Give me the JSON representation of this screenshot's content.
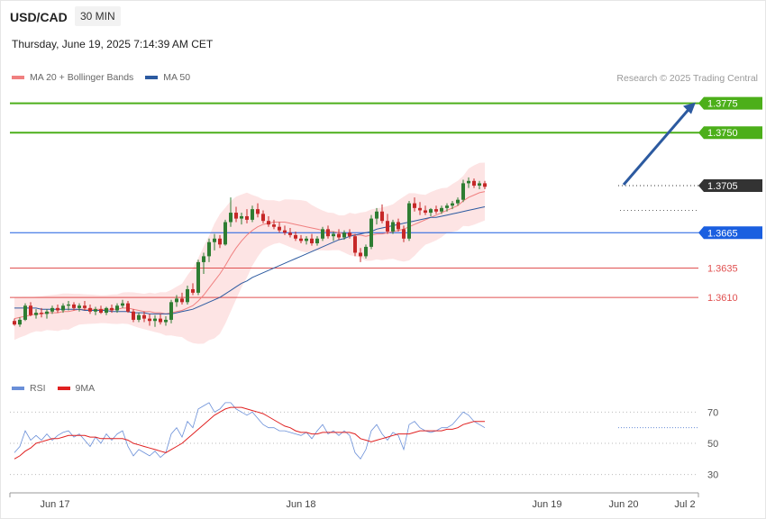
{
  "header": {
    "symbol": "USD/CAD",
    "timeframe": "30 MIN",
    "datetime": "Thursday, June 19, 2025 7:14:39 AM CET"
  },
  "legend": {
    "price_items": [
      {
        "label": "MA 20 + Bollinger Bands",
        "color": "#f08080"
      },
      {
        "label": "MA 50",
        "color": "#2c5aa0"
      }
    ],
    "rsi_items": [
      {
        "label": "RSI",
        "color": "#6a8fd8"
      },
      {
        "label": "9MA",
        "color": "#e02020"
      }
    ],
    "copyright": "Research © 2025 Trading Central"
  },
  "colors": {
    "up": "#2e7d32",
    "down": "#c62828",
    "resistance": "#4caf1a",
    "support": "#e05050",
    "pivot": "#1a5fe0",
    "arrow": "#2c5aa0",
    "current": "#333333"
  },
  "chart_data": [
    {
      "type": "line",
      "title": "USD/CAD",
      "ylim": [
        1.3545,
        1.379
      ],
      "x_tick_labels": [
        "Jun 17",
        "Jun 18",
        "Jun 19",
        "Jun 20",
        "Jul 2"
      ],
      "levels": [
        {
          "value": 1.3775,
          "label": "1.3775",
          "kind": "resistance"
        },
        {
          "value": 1.375,
          "label": "1.3750",
          "kind": "resistance"
        },
        {
          "value": 1.3705,
          "label": "1.3705",
          "kind": "current"
        },
        {
          "value": 1.3665,
          "label": "1.3665",
          "kind": "pivot"
        },
        {
          "value": 1.3635,
          "label": "1.3635",
          "kind": "support"
        },
        {
          "value": 1.361,
          "label": "1.3610",
          "kind": "support"
        }
      ],
      "projection": {
        "from": 1.3705,
        "to": 1.3775
      },
      "candles": [
        [
          1.359,
          1.3592,
          1.3586,
          1.3587
        ],
        [
          1.3587,
          1.3593,
          1.3585,
          1.3591
        ],
        [
          1.3591,
          1.3605,
          1.359,
          1.3603
        ],
        [
          1.3603,
          1.3606,
          1.3594,
          1.3595
        ],
        [
          1.3595,
          1.36,
          1.3592,
          1.3597
        ],
        [
          1.3597,
          1.3601,
          1.3593,
          1.3596
        ],
        [
          1.3596,
          1.36,
          1.3592,
          1.3598
        ],
        [
          1.3598,
          1.3603,
          1.3596,
          1.3601
        ],
        [
          1.3601,
          1.3604,
          1.3597,
          1.3599
        ],
        [
          1.3599,
          1.3605,
          1.3597,
          1.3603
        ],
        [
          1.3603,
          1.3607,
          1.3599,
          1.3604
        ],
        [
          1.3604,
          1.3606,
          1.3599,
          1.3601
        ],
        [
          1.3601,
          1.3605,
          1.3598,
          1.3603
        ],
        [
          1.3603,
          1.3607,
          1.3599,
          1.3601
        ],
        [
          1.3601,
          1.3604,
          1.3596,
          1.3598
        ],
        [
          1.3598,
          1.3602,
          1.3595,
          1.36
        ],
        [
          1.36,
          1.3603,
          1.3596,
          1.3597
        ],
        [
          1.3597,
          1.3602,
          1.3595,
          1.3601
        ],
        [
          1.3601,
          1.3604,
          1.3597,
          1.3599
        ],
        [
          1.3599,
          1.3605,
          1.3597,
          1.3603
        ],
        [
          1.3603,
          1.3608,
          1.3601,
          1.3605
        ],
        [
          1.3605,
          1.3607,
          1.3597,
          1.3598
        ],
        [
          1.3598,
          1.36,
          1.3589,
          1.3591
        ],
        [
          1.3591,
          1.3597,
          1.3589,
          1.3595
        ],
        [
          1.3595,
          1.3598,
          1.3589,
          1.3592
        ],
        [
          1.3592,
          1.3596,
          1.3586,
          1.359
        ],
        [
          1.359,
          1.3595,
          1.3585,
          1.3592
        ],
        [
          1.3592,
          1.3596,
          1.3587,
          1.3589
        ],
        [
          1.3589,
          1.3594,
          1.3586,
          1.3591
        ],
        [
          1.3591,
          1.3608,
          1.3588,
          1.3606
        ],
        [
          1.3606,
          1.3612,
          1.3602,
          1.3609
        ],
        [
          1.3609,
          1.3614,
          1.3604,
          1.3606
        ],
        [
          1.3606,
          1.362,
          1.3604,
          1.3617
        ],
        [
          1.3617,
          1.3622,
          1.3612,
          1.3614
        ],
        [
          1.3614,
          1.3642,
          1.3612,
          1.364
        ],
        [
          1.364,
          1.3648,
          1.363,
          1.3645
        ],
        [
          1.3645,
          1.366,
          1.364,
          1.3657
        ],
        [
          1.3657,
          1.3664,
          1.365,
          1.366
        ],
        [
          1.366,
          1.3663,
          1.3652,
          1.3655
        ],
        [
          1.3655,
          1.3676,
          1.3654,
          1.3674
        ],
        [
          1.3674,
          1.3695,
          1.367,
          1.3682
        ],
        [
          1.3682,
          1.3687,
          1.3674,
          1.3677
        ],
        [
          1.3677,
          1.3682,
          1.3672,
          1.3679
        ],
        [
          1.3679,
          1.3685,
          1.3673,
          1.3676
        ],
        [
          1.3676,
          1.3688,
          1.3674,
          1.3685
        ],
        [
          1.3685,
          1.369,
          1.3678,
          1.3681
        ],
        [
          1.3681,
          1.3684,
          1.3673,
          1.3675
        ],
        [
          1.3675,
          1.3679,
          1.367,
          1.3672
        ],
        [
          1.3672,
          1.3676,
          1.3668,
          1.367
        ],
        [
          1.367,
          1.3674,
          1.3665,
          1.3667
        ],
        [
          1.3667,
          1.3671,
          1.3663,
          1.3665
        ],
        [
          1.3665,
          1.3669,
          1.3661,
          1.3663
        ],
        [
          1.3663,
          1.3666,
          1.3658,
          1.366
        ],
        [
          1.366,
          1.3663,
          1.3656,
          1.3658
        ],
        [
          1.3658,
          1.3662,
          1.3655,
          1.366
        ],
        [
          1.366,
          1.3664,
          1.3654,
          1.3656
        ],
        [
          1.3656,
          1.3662,
          1.3654,
          1.366
        ],
        [
          1.366,
          1.367,
          1.3658,
          1.3668
        ],
        [
          1.3668,
          1.3671,
          1.366,
          1.3662
        ],
        [
          1.3662,
          1.3666,
          1.3658,
          1.3664
        ],
        [
          1.3664,
          1.3668,
          1.3659,
          1.3661
        ],
        [
          1.3661,
          1.3667,
          1.3659,
          1.3665
        ],
        [
          1.3665,
          1.3668,
          1.366,
          1.3662
        ],
        [
          1.3662,
          1.3664,
          1.3645,
          1.3648
        ],
        [
          1.3648,
          1.3652,
          1.364,
          1.3645
        ],
        [
          1.3645,
          1.3655,
          1.3643,
          1.3653
        ],
        [
          1.3653,
          1.368,
          1.3651,
          1.3677
        ],
        [
          1.3677,
          1.3686,
          1.3672,
          1.3683
        ],
        [
          1.3683,
          1.3689,
          1.3673,
          1.3675
        ],
        [
          1.3675,
          1.3681,
          1.3664,
          1.3666
        ],
        [
          1.3666,
          1.3676,
          1.3664,
          1.3674
        ],
        [
          1.3674,
          1.3677,
          1.3666,
          1.3668
        ],
        [
          1.3668,
          1.3671,
          1.3657,
          1.366
        ],
        [
          1.366,
          1.3692,
          1.3658,
          1.369
        ],
        [
          1.369,
          1.3695,
          1.3683,
          1.3686
        ],
        [
          1.3686,
          1.3691,
          1.368,
          1.3684
        ],
        [
          1.3684,
          1.3688,
          1.368,
          1.3682
        ],
        [
          1.3682,
          1.3686,
          1.3679,
          1.3685
        ],
        [
          1.3685,
          1.3688,
          1.3681,
          1.3683
        ],
        [
          1.3683,
          1.3688,
          1.3681,
          1.3686
        ],
        [
          1.3686,
          1.369,
          1.3683,
          1.3688
        ],
        [
          1.3688,
          1.3692,
          1.3685,
          1.369
        ],
        [
          1.369,
          1.3695,
          1.3688,
          1.3693
        ],
        [
          1.3693,
          1.371,
          1.3691,
          1.3707
        ],
        [
          1.3707,
          1.3712,
          1.3703,
          1.3709
        ],
        [
          1.3709,
          1.3711,
          1.3703,
          1.3705
        ],
        [
          1.3705,
          1.3709,
          1.3702,
          1.3707
        ],
        [
          1.3707,
          1.3709,
          1.3702,
          1.3704
        ]
      ],
      "series": [
        {
          "name": "MA 20 + Bollinger Bands",
          "values": [
            1.3592,
            1.3593,
            1.3594,
            1.3595,
            1.3596,
            1.3596,
            1.3597,
            1.3597,
            1.3597,
            1.3598,
            1.3598,
            1.3599,
            1.36,
            1.36,
            1.36,
            1.36,
            1.36,
            1.36,
            1.36,
            1.36,
            1.3601,
            1.3601,
            1.36,
            1.3599,
            1.3598,
            1.3598,
            1.3597,
            1.3597,
            1.3596,
            1.3597,
            1.3598,
            1.3599,
            1.3601,
            1.3603,
            1.3607,
            1.3612,
            1.3618,
            1.3624,
            1.363,
            1.3637,
            1.3645,
            1.3652,
            1.3658,
            1.3663,
            1.3667,
            1.367,
            1.3672,
            1.3673,
            1.3674,
            1.3674,
            1.3674,
            1.3673,
            1.3672,
            1.3671,
            1.367,
            1.3669,
            1.3668,
            1.3667,
            1.3666,
            1.3666,
            1.3665,
            1.3664,
            1.3664,
            1.3663,
            1.3663,
            1.3662,
            1.3663,
            1.3664,
            1.3664,
            1.3665,
            1.3666,
            1.3667,
            1.3668,
            1.367,
            1.3672,
            1.3674,
            1.3676,
            1.3678,
            1.368,
            1.3682,
            1.3684,
            1.3686,
            1.3688,
            1.3692,
            1.3695,
            1.3697,
            1.3699,
            1.37
          ]
        },
        {
          "name": "MA 50",
          "values": [
            1.3601,
            1.3601,
            1.3601,
            1.3601,
            1.3601,
            1.36,
            1.36,
            1.36,
            1.36,
            1.36,
            1.36,
            1.36,
            1.36,
            1.3599,
            1.3599,
            1.3599,
            1.3599,
            1.3599,
            1.3598,
            1.3598,
            1.3598,
            1.3598,
            1.3597,
            1.3597,
            1.3597,
            1.3596,
            1.3596,
            1.3596,
            1.3596,
            1.3596,
            1.3597,
            1.3598,
            1.3599,
            1.36,
            1.3602,
            1.3604,
            1.3606,
            1.3608,
            1.361,
            1.3613,
            1.3616,
            1.3619,
            1.3622,
            1.3624,
            1.3627,
            1.3629,
            1.3631,
            1.3633,
            1.3635,
            1.3637,
            1.3639,
            1.3641,
            1.3643,
            1.3645,
            1.3647,
            1.3649,
            1.3651,
            1.3653,
            1.3655,
            1.3657,
            1.3659,
            1.366,
            1.3662,
            1.3663,
            1.3664,
            1.3665,
            1.3666,
            1.3668,
            1.3669,
            1.367,
            1.3671,
            1.3672,
            1.3673,
            1.3674,
            1.3675,
            1.3676,
            1.3677,
            1.3678,
            1.3678,
            1.3679,
            1.368,
            1.3681,
            1.3682,
            1.3683,
            1.3684,
            1.3685,
            1.3686,
            1.3687
          ]
        }
      ]
    },
    {
      "type": "line",
      "title": "RSI",
      "ylim": [
        20,
        80
      ],
      "y_ticks": [
        70,
        50,
        30
      ],
      "series": [
        {
          "name": "RSI",
          "values": [
            44,
            48,
            58,
            52,
            55,
            52,
            56,
            52,
            55,
            57,
            58,
            54,
            56,
            52,
            48,
            54,
            50,
            56,
            52,
            56,
            58,
            48,
            42,
            46,
            44,
            42,
            45,
            41,
            44,
            56,
            60,
            54,
            64,
            60,
            72,
            74,
            76,
            70,
            72,
            76,
            76,
            72,
            70,
            68,
            70,
            66,
            62,
            60,
            60,
            58,
            58,
            57,
            56,
            55,
            57,
            53,
            58,
            62,
            56,
            58,
            55,
            58,
            55,
            44,
            40,
            46,
            58,
            62,
            56,
            52,
            57,
            55,
            46,
            62,
            64,
            60,
            58,
            57,
            58,
            60,
            60,
            62,
            66,
            70,
            68,
            64,
            62,
            60
          ]
        },
        {
          "name": "9MA",
          "values": [
            40,
            42,
            45,
            47,
            50,
            51,
            52,
            53,
            53,
            54,
            55,
            55,
            55,
            55,
            54,
            54,
            53,
            53,
            53,
            53,
            53,
            52,
            50,
            49,
            48,
            47,
            46,
            45,
            44,
            46,
            48,
            50,
            53,
            56,
            59,
            62,
            65,
            68,
            70,
            72,
            73,
            73,
            73,
            72,
            71,
            70,
            69,
            67,
            65,
            63,
            61,
            60,
            58,
            57,
            57,
            56,
            56,
            57,
            57,
            57,
            57,
            57,
            57,
            56,
            53,
            52,
            51,
            52,
            53,
            54,
            55,
            56,
            56,
            56,
            57,
            58,
            58,
            58,
            58,
            58,
            59,
            59,
            60,
            62,
            63,
            64,
            64,
            64
          ]
        }
      ]
    }
  ]
}
